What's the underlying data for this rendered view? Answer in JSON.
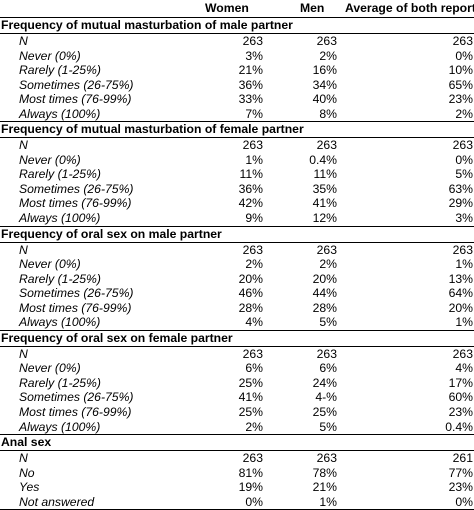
{
  "header": {
    "col_women": "Women",
    "col_men": "Men",
    "col_average": "Average of both reports"
  },
  "sections": [
    {
      "title": "Frequency of mutual masturbation of male partner",
      "rows": [
        {
          "label": "N",
          "women": "263",
          "men": "263",
          "avg": "263"
        },
        {
          "label": "Never (0%)",
          "women": "3%",
          "men": "2%",
          "avg": "0%"
        },
        {
          "label": "Rarely (1-25%)",
          "women": "21%",
          "men": "16%",
          "avg": "10%"
        },
        {
          "label": "Sometimes (26-75%)",
          "women": "36%",
          "men": "34%",
          "avg": "65%"
        },
        {
          "label": "Most times (76-99%)",
          "women": "33%",
          "men": "40%",
          "avg": "23%"
        },
        {
          "label": "Always (100%)",
          "women": "7%",
          "men": "8%",
          "avg": "2%"
        }
      ]
    },
    {
      "title": "Frequency of mutual masturbation of female partner",
      "rows": [
        {
          "label": "N",
          "women": "263",
          "men": "263",
          "avg": "263"
        },
        {
          "label": "Never (0%)",
          "women": "1%",
          "men": "0.4%",
          "avg": "0%"
        },
        {
          "label": "Rarely (1-25%)",
          "women": "11%",
          "men": "11%",
          "avg": "5%"
        },
        {
          "label": "Sometimes (26-75%)",
          "women": "36%",
          "men": "35%",
          "avg": "63%"
        },
        {
          "label": "Most times (76-99%)",
          "women": "42%",
          "men": "41%",
          "avg": "29%"
        },
        {
          "label": "Always (100%)",
          "women": "9%",
          "men": "12%",
          "avg": "3%"
        }
      ]
    },
    {
      "title": "Frequency of oral sex on male partner",
      "rows": [
        {
          "label": "N",
          "women": "263",
          "men": "263",
          "avg": "263"
        },
        {
          "label": "Never (0%)",
          "women": "2%",
          "men": "2%",
          "avg": "1%"
        },
        {
          "label": "Rarely (1-25%)",
          "women": "20%",
          "men": "20%",
          "avg": "13%"
        },
        {
          "label": "Sometimes (26-75%)",
          "women": "46%",
          "men": "44%",
          "avg": "64%"
        },
        {
          "label": "Most times (76-99%)",
          "women": "28%",
          "men": "28%",
          "avg": "20%"
        },
        {
          "label": "Always (100%)",
          "women": "4%",
          "men": "5%",
          "avg": "1%"
        }
      ]
    },
    {
      "title": "Frequency of oral sex on female partner",
      "rows": [
        {
          "label": "N",
          "women": "263",
          "men": "263",
          "avg": "263"
        },
        {
          "label": "Never (0%)",
          "women": "6%",
          "men": "6%",
          "avg": "4%"
        },
        {
          "label": "Rarely (1-25%)",
          "women": "25%",
          "men": "24%",
          "avg": "17%"
        },
        {
          "label": "Sometimes (26-75%)",
          "women": "41%",
          "men": "4-%",
          "avg": "60%"
        },
        {
          "label": "Most times (76-99%)",
          "women": "25%",
          "men": "25%",
          "avg": "23%"
        },
        {
          "label": "Always (100%)",
          "women": "2%",
          "men": "5%",
          "avg": "0.4%"
        }
      ]
    },
    {
      "title": "Anal sex",
      "rows": [
        {
          "label": "N",
          "women": "263",
          "men": "263",
          "avg": "261"
        },
        {
          "label": "No",
          "women": "81%",
          "men": "78%",
          "avg": "77%"
        },
        {
          "label": "Yes",
          "women": "19%",
          "men": "21%",
          "avg": "23%"
        },
        {
          "label": "Not answered",
          "women": "0%",
          "men": "1%",
          "avg": "0%"
        }
      ]
    }
  ]
}
